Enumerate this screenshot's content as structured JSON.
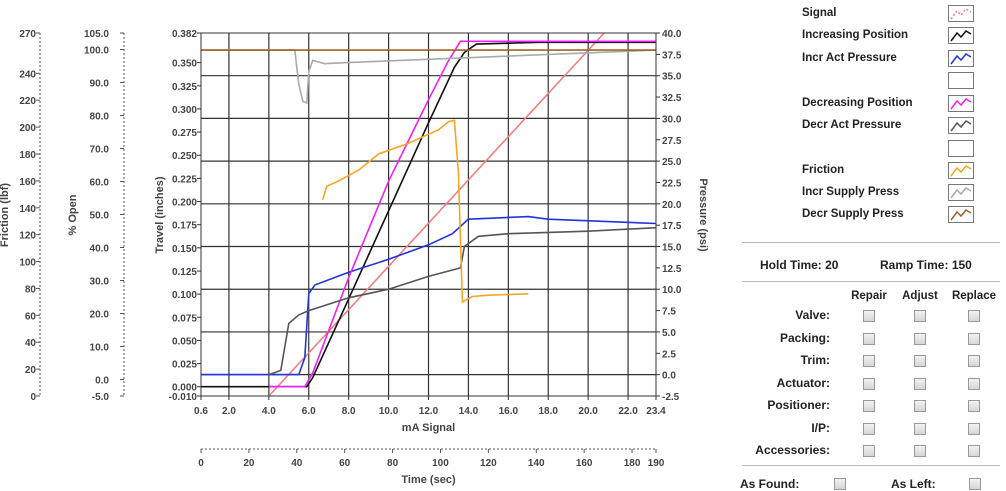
{
  "chart_data": {
    "type": "line",
    "xlabel": "mA Signal",
    "x2label": "Time (sec)",
    "y_left_labels": [
      "Friction (lbf)",
      "% Open",
      "Travel (inches)"
    ],
    "yrlabel": "Pressure (psi)",
    "xlim": [
      0.6,
      23.4
    ],
    "x_ticks": [
      "0.6",
      "2.0",
      "4.0",
      "6.0",
      "8.0",
      "10.0",
      "12.0",
      "14.0",
      "16.0",
      "18.0",
      "20.0",
      "22.0",
      "23.4"
    ],
    "x2_ticks": [
      "0",
      "20",
      "40",
      "60",
      "80",
      "100",
      "120",
      "140",
      "160",
      "180",
      "190"
    ],
    "travel_ticks": [
      "-0.010",
      "0.000",
      "0.025",
      "0.050",
      "0.075",
      "0.100",
      "0.125",
      "0.150",
      "0.175",
      "0.200",
      "0.225",
      "0.250",
      "0.275",
      "0.300",
      "0.325",
      "0.350",
      "0.382"
    ],
    "pressure_ticks": [
      "-2.5",
      "0.0",
      "2.5",
      "5.0",
      "7.5",
      "10.0",
      "12.5",
      "15.0",
      "17.5",
      "20.0",
      "22.5",
      "25.0",
      "27.5",
      "30.0",
      "32.5",
      "35.0",
      "37.5",
      "40.0"
    ],
    "open_ticks": [
      "-5.0",
      "0.0",
      "10.0",
      "20.0",
      "30.0",
      "40.0",
      "50.0",
      "60.0",
      "70.0",
      "80.0",
      "90.0",
      "100.0",
      "105.0"
    ],
    "friction_ticks": [
      "0",
      "20",
      "40",
      "60",
      "80",
      "100",
      "120",
      "140",
      "160",
      "180",
      "200",
      "220",
      "240",
      "270"
    ],
    "ylim_travel": [
      -0.01,
      0.382
    ],
    "ylim_pressure": [
      -2.5,
      40.0
    ],
    "grid": true,
    "series": [
      {
        "name": "Signal",
        "axis": "pressure",
        "x": [
          4.0,
          20.8
        ],
        "y": [
          -2.5,
          40.0
        ]
      },
      {
        "name": "Increasing Position",
        "axis": "travel",
        "x": [
          0.6,
          5.9,
          6.2,
          8.0,
          10.0,
          12.0,
          13.3,
          13.8,
          14.4,
          17.5,
          23.4
        ],
        "y": [
          0.0,
          0.0,
          0.01,
          0.095,
          0.19,
          0.285,
          0.345,
          0.361,
          0.37,
          0.372,
          0.372
        ]
      },
      {
        "name": "Incr Act Pressure",
        "axis": "pressure",
        "x": [
          0.6,
          5.5,
          5.8,
          6.0,
          6.3,
          8.0,
          10.0,
          12.0,
          13.2,
          14.0,
          17.0,
          18.0,
          23.4
        ],
        "y": [
          0.0,
          0.0,
          2.0,
          9.5,
          10.5,
          12.0,
          13.5,
          15.2,
          16.5,
          18.2,
          18.5,
          18.2,
          17.7
        ]
      },
      {
        "name": "Decreasing Position",
        "axis": "travel",
        "x": [
          4.0,
          5.8,
          6.2,
          8.0,
          10.0,
          12.0,
          13.0,
          13.6,
          23.4
        ],
        "y": [
          0.0,
          0.0,
          0.015,
          0.118,
          0.222,
          0.31,
          0.352,
          0.373,
          0.373
        ]
      },
      {
        "name": "Decr Act Pressure",
        "axis": "pressure",
        "x": [
          4.0,
          4.6,
          5.0,
          5.5,
          6.0,
          8.0,
          10.0,
          12.0,
          13.6,
          13.8,
          14.5,
          16.0,
          20.0,
          23.4
        ],
        "y": [
          0.0,
          0.5,
          6.0,
          7.0,
          7.5,
          9.0,
          10.0,
          11.5,
          12.5,
          15.0,
          16.2,
          16.5,
          16.8,
          17.2
        ]
      },
      {
        "name": "Friction",
        "axis": "friction",
        "x": [
          6.7,
          6.9,
          7.5,
          8.5,
          9.5,
          11.0,
          12.5,
          13.0,
          13.3,
          13.5,
          13.7,
          14.2,
          15.0,
          17.0
        ],
        "y": [
          146,
          156,
          160,
          168,
          180,
          188,
          198,
          204,
          205,
          166,
          70,
          74,
          75,
          76
        ]
      },
      {
        "name": "Incr Supply Press",
        "axis": "pressure",
        "x": [
          0.6,
          5.3,
          5.5,
          5.7,
          5.9,
          6.0,
          6.2,
          6.8,
          7.5,
          23.4
        ],
        "y": [
          38.0,
          38.0,
          34.0,
          32.0,
          31.8,
          35.5,
          36.8,
          36.4,
          36.5,
          38.0
        ]
      },
      {
        "name": "Decr Supply Press",
        "axis": "pressure",
        "x": [
          0.6,
          23.4
        ],
        "y": [
          38.0,
          38.0
        ]
      }
    ]
  },
  "legend": [
    {
      "label": "Signal",
      "color": "#f08080",
      "dash": "2,2"
    },
    {
      "label": "Increasing Position",
      "color": "#111111"
    },
    {
      "label": "Incr Act Pressure",
      "color": "#2233dd"
    },
    {
      "label": "",
      "color": ""
    },
    {
      "label": "Decreasing Position",
      "color": "#ee22ee"
    },
    {
      "label": "Decr Act Pressure",
      "color": "#555555"
    },
    {
      "label": "",
      "color": ""
    },
    {
      "label": "Friction",
      "color": "#f5a623"
    },
    {
      "label": "Incr Supply Press",
      "color": "#aaaaaa"
    },
    {
      "label": "Decr Supply Press",
      "color": "#a0622d"
    }
  ],
  "series_colors": {
    "Signal": "#f08080",
    "Increasing Position": "#111111",
    "Incr Act Pressure": "#2233dd",
    "Decreasing Position": "#ee22ee",
    "Decr Act Pressure": "#555555",
    "Friction": "#f5a623",
    "Incr Supply Press": "#aaaaaa",
    "Decr Supply Press": "#a0622d"
  },
  "settings": {
    "hold_label": "Hold Time:",
    "hold_value": "20",
    "ramp_label": "Ramp Time:",
    "ramp_value": "150"
  },
  "maintenance": {
    "columns": [
      "Repair",
      "Adjust",
      "Replace"
    ],
    "rows": [
      "Valve:",
      "Packing:",
      "Trim:",
      "Actuator:",
      "Positioner:",
      "I/P:",
      "Accessories:"
    ]
  },
  "footer": {
    "as_found": "As Found:",
    "as_left": "As Left:"
  }
}
